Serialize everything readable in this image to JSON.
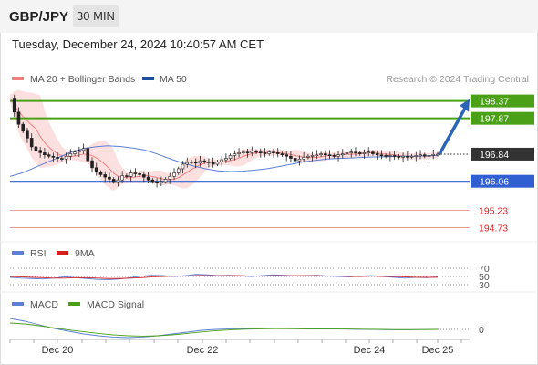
{
  "header": {
    "pair": "GBP/JPY",
    "timeframe": "30 MIN"
  },
  "timestamp": "Tuesday, December 24, 2024 10:40:57 AM CET",
  "legend": {
    "ma20": {
      "label": "MA 20 + Bollinger Bands",
      "color": "#f08080"
    },
    "ma50": {
      "label": "MA 50",
      "color": "#1f4e9c"
    }
  },
  "credit": "Research © 2024 Trading Central",
  "chart_data": [
    {
      "type": "line",
      "panel": "price",
      "x_labels": [
        "Dec 20",
        "Dec 22",
        "Dec 24",
        "Dec 25"
      ],
      "ylim": [
        194.4,
        198.7
      ],
      "last_price": 196.84,
      "price_series": [
        198.45,
        198.05,
        197.7,
        197.5,
        197.3,
        197.05,
        196.95,
        196.88,
        196.82,
        196.78,
        196.75,
        196.72,
        196.7,
        196.78,
        196.85,
        196.9,
        196.95,
        197.0,
        196.65,
        196.45,
        196.32,
        196.25,
        196.18,
        196.12,
        196.05,
        196.1,
        196.22,
        196.2,
        196.3,
        196.28,
        196.25,
        196.18,
        196.1,
        196.05,
        196.02,
        196.05,
        196.12,
        196.2,
        196.3,
        196.42,
        196.55,
        196.6,
        196.62,
        196.58,
        196.65,
        196.62,
        196.6,
        196.55,
        196.62,
        196.68,
        196.72,
        196.8,
        196.85,
        196.88,
        196.9,
        196.88,
        196.92,
        196.9,
        196.88,
        196.85,
        196.9,
        196.88,
        196.85,
        196.82,
        196.78,
        196.72,
        196.65,
        196.7,
        196.75,
        196.78,
        196.8,
        196.82,
        196.85,
        196.82,
        196.8,
        196.78,
        196.82,
        196.85,
        196.88,
        196.9,
        196.88,
        196.85,
        196.88,
        196.9,
        196.85,
        196.82,
        196.8,
        196.78,
        196.8,
        196.78,
        196.75,
        196.78,
        196.76,
        196.78,
        196.8,
        196.82,
        196.78,
        196.8,
        196.83,
        196.84
      ],
      "ma50_series": [
        196.2,
        196.3,
        196.45,
        196.6,
        196.75,
        196.9,
        197.0,
        197.05,
        197.08,
        197.06,
        197.02,
        196.96,
        196.85,
        196.72,
        196.6,
        196.5,
        196.42,
        196.36,
        196.34,
        196.35,
        196.38,
        196.42,
        196.48,
        196.55,
        196.62,
        196.66,
        196.7,
        196.72,
        196.73,
        196.75,
        196.76,
        196.77,
        196.78,
        196.78,
        196.79,
        196.8
      ],
      "levels": [
        {
          "value": 198.37,
          "label": "198.37",
          "kind": "resistance",
          "color": "#4aa016"
        },
        {
          "value": 197.87,
          "label": "197.87",
          "kind": "resistance",
          "color": "#4aa016"
        },
        {
          "value": 196.84,
          "label": "196.84",
          "kind": "last",
          "color": "#333333"
        },
        {
          "value": 196.06,
          "label": "196.06",
          "kind": "pivot",
          "color": "#2f5fd0"
        },
        {
          "value": 195.23,
          "label": "195.23",
          "kind": "support",
          "color": "#e05050"
        },
        {
          "value": 194.73,
          "label": "194.73",
          "kind": "support",
          "color": "#e05050"
        }
      ]
    },
    {
      "type": "line",
      "panel": "rsi",
      "legend": [
        {
          "label": "RSI",
          "color": "#5b7fd6"
        },
        {
          "label": "9MA",
          "color": "#d62020"
        }
      ],
      "ticks": [
        70,
        50,
        30
      ],
      "ylim": [
        0,
        100
      ],
      "rsi": [
        48,
        46,
        45,
        44,
        46,
        49,
        47,
        45,
        43,
        42,
        44,
        47,
        51,
        53,
        52,
        50,
        52,
        55,
        54,
        52,
        53,
        51,
        50,
        52,
        54,
        53,
        51,
        52,
        53,
        51,
        50,
        49,
        51,
        52,
        50,
        48,
        46,
        48,
        47,
        49
      ],
      "ma9": [
        50,
        49,
        48,
        47,
        46,
        46,
        47,
        47,
        46,
        45,
        45,
        46,
        47,
        49,
        50,
        51,
        51,
        52,
        52,
        52,
        52,
        52,
        51,
        51,
        52,
        52,
        52,
        52,
        52,
        51,
        51,
        50,
        50,
        51,
        50,
        50,
        49,
        48,
        48,
        48
      ]
    },
    {
      "type": "line",
      "panel": "macd",
      "legend": [
        {
          "label": "MACD",
          "color": "#5b7fd6"
        },
        {
          "label": "MACD Signal",
          "color": "#4aa016"
        }
      ],
      "ticks": [
        0
      ],
      "ylim": [
        -1.4,
        0.8
      ],
      "macd": [
        0.6,
        0.45,
        0.25,
        0.05,
        -0.1,
        -0.25,
        -0.35,
        -0.42,
        -0.45,
        -0.42,
        -0.35,
        -0.25,
        -0.15,
        -0.05,
        0.0,
        0.03,
        0.05,
        0.06,
        0.05,
        0.04,
        0.03,
        0.02,
        0.02,
        0.01,
        0.0,
        -0.01,
        -0.02,
        -0.02,
        -0.01,
        0.0
      ],
      "signal": [
        0.35,
        0.3,
        0.2,
        0.08,
        -0.03,
        -0.13,
        -0.22,
        -0.3,
        -0.35,
        -0.37,
        -0.35,
        -0.3,
        -0.22,
        -0.14,
        -0.07,
        -0.02,
        0.01,
        0.03,
        0.04,
        0.04,
        0.03,
        0.03,
        0.02,
        0.02,
        0.01,
        0.0,
        -0.01,
        -0.01,
        -0.01,
        0.0
      ]
    }
  ]
}
